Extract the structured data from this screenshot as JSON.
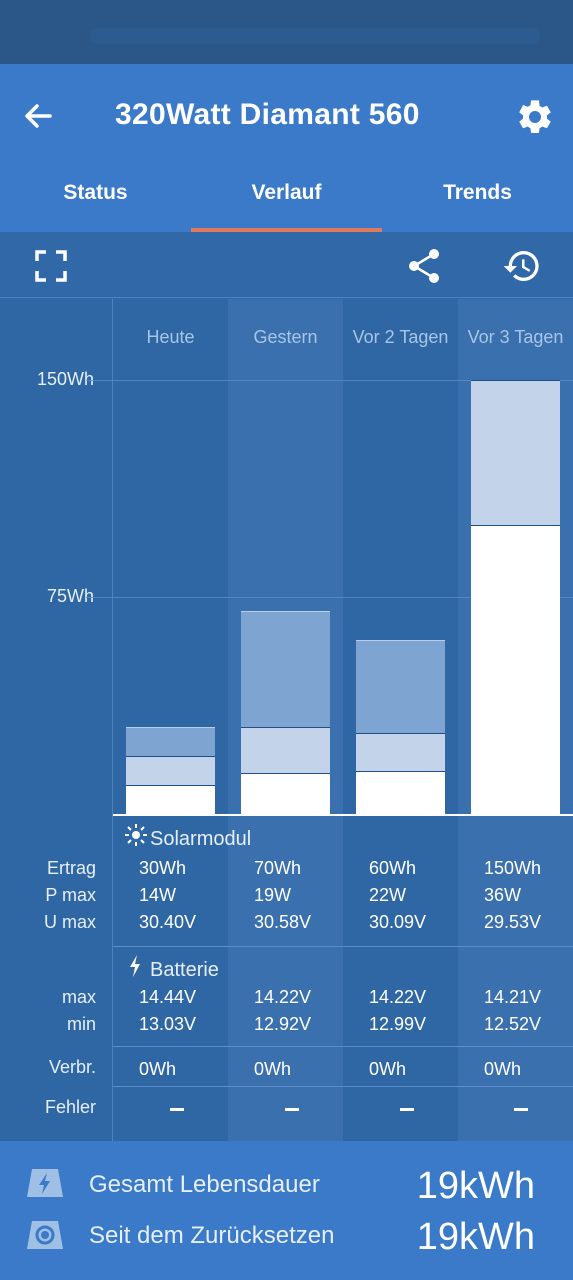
{
  "header": {
    "title": "320Watt Diamant 560",
    "back_icon": "arrow-left-icon",
    "settings_icon": "gear-icon"
  },
  "tabs": [
    {
      "label": "Status",
      "active": false
    },
    {
      "label": "Verlauf",
      "active": true
    },
    {
      "label": "Trends",
      "active": false
    }
  ],
  "toolbar": {
    "fullscreen_icon": "fullscreen-icon",
    "share_icon": "share-icon",
    "history_icon": "history-icon"
  },
  "chart_data": {
    "type": "bar",
    "categories": [
      "Heute",
      "Gestern",
      "Vor 2 Tagen",
      "Vor 3 Tagen"
    ],
    "ylim": [
      0,
      150
    ],
    "yticks": [
      {
        "value": 150,
        "label": "150Wh"
      },
      {
        "value": 75,
        "label": "75Wh"
      }
    ],
    "series_stacks": [
      [
        10,
        20,
        30
      ],
      [
        14,
        30,
        70
      ],
      [
        15,
        28,
        60
      ],
      [
        100,
        150,
        150
      ]
    ]
  },
  "solar": {
    "title": "Solarmodul",
    "labels": {
      "ertrag": "Ertrag",
      "pmax": "P max",
      "umax": "U max"
    },
    "ertrag": [
      "30Wh",
      "70Wh",
      "60Wh",
      "150Wh"
    ],
    "pmax": [
      "14W",
      "19W",
      "22W",
      "36W"
    ],
    "umax": [
      "30.40V",
      "30.58V",
      "30.09V",
      "29.53V"
    ]
  },
  "battery": {
    "title": "Batterie",
    "labels": {
      "max": "max",
      "min": "min"
    },
    "max": [
      "14.44V",
      "14.22V",
      "14.22V",
      "14.21V"
    ],
    "min": [
      "13.03V",
      "12.92V",
      "12.99V",
      "12.52V"
    ]
  },
  "consumption": {
    "label": "Verbr.",
    "values": [
      "0Wh",
      "0Wh",
      "0Wh",
      "0Wh"
    ]
  },
  "errors": {
    "label": "Fehler"
  },
  "footer": {
    "lifetime_label": "Gesamt Lebensdauer",
    "lifetime_value": "19kWh",
    "reset_label": "Seit dem Zurücksetzen",
    "reset_value": "19kWh"
  },
  "colors": {
    "background": "#3068a8",
    "appbar": "#3a7ac8",
    "tab_indicator": "#e07a5f",
    "bar_dark": "#7ea5d2",
    "bar_mid": "#c3d4ea",
    "bar_white": "#ffffff"
  }
}
